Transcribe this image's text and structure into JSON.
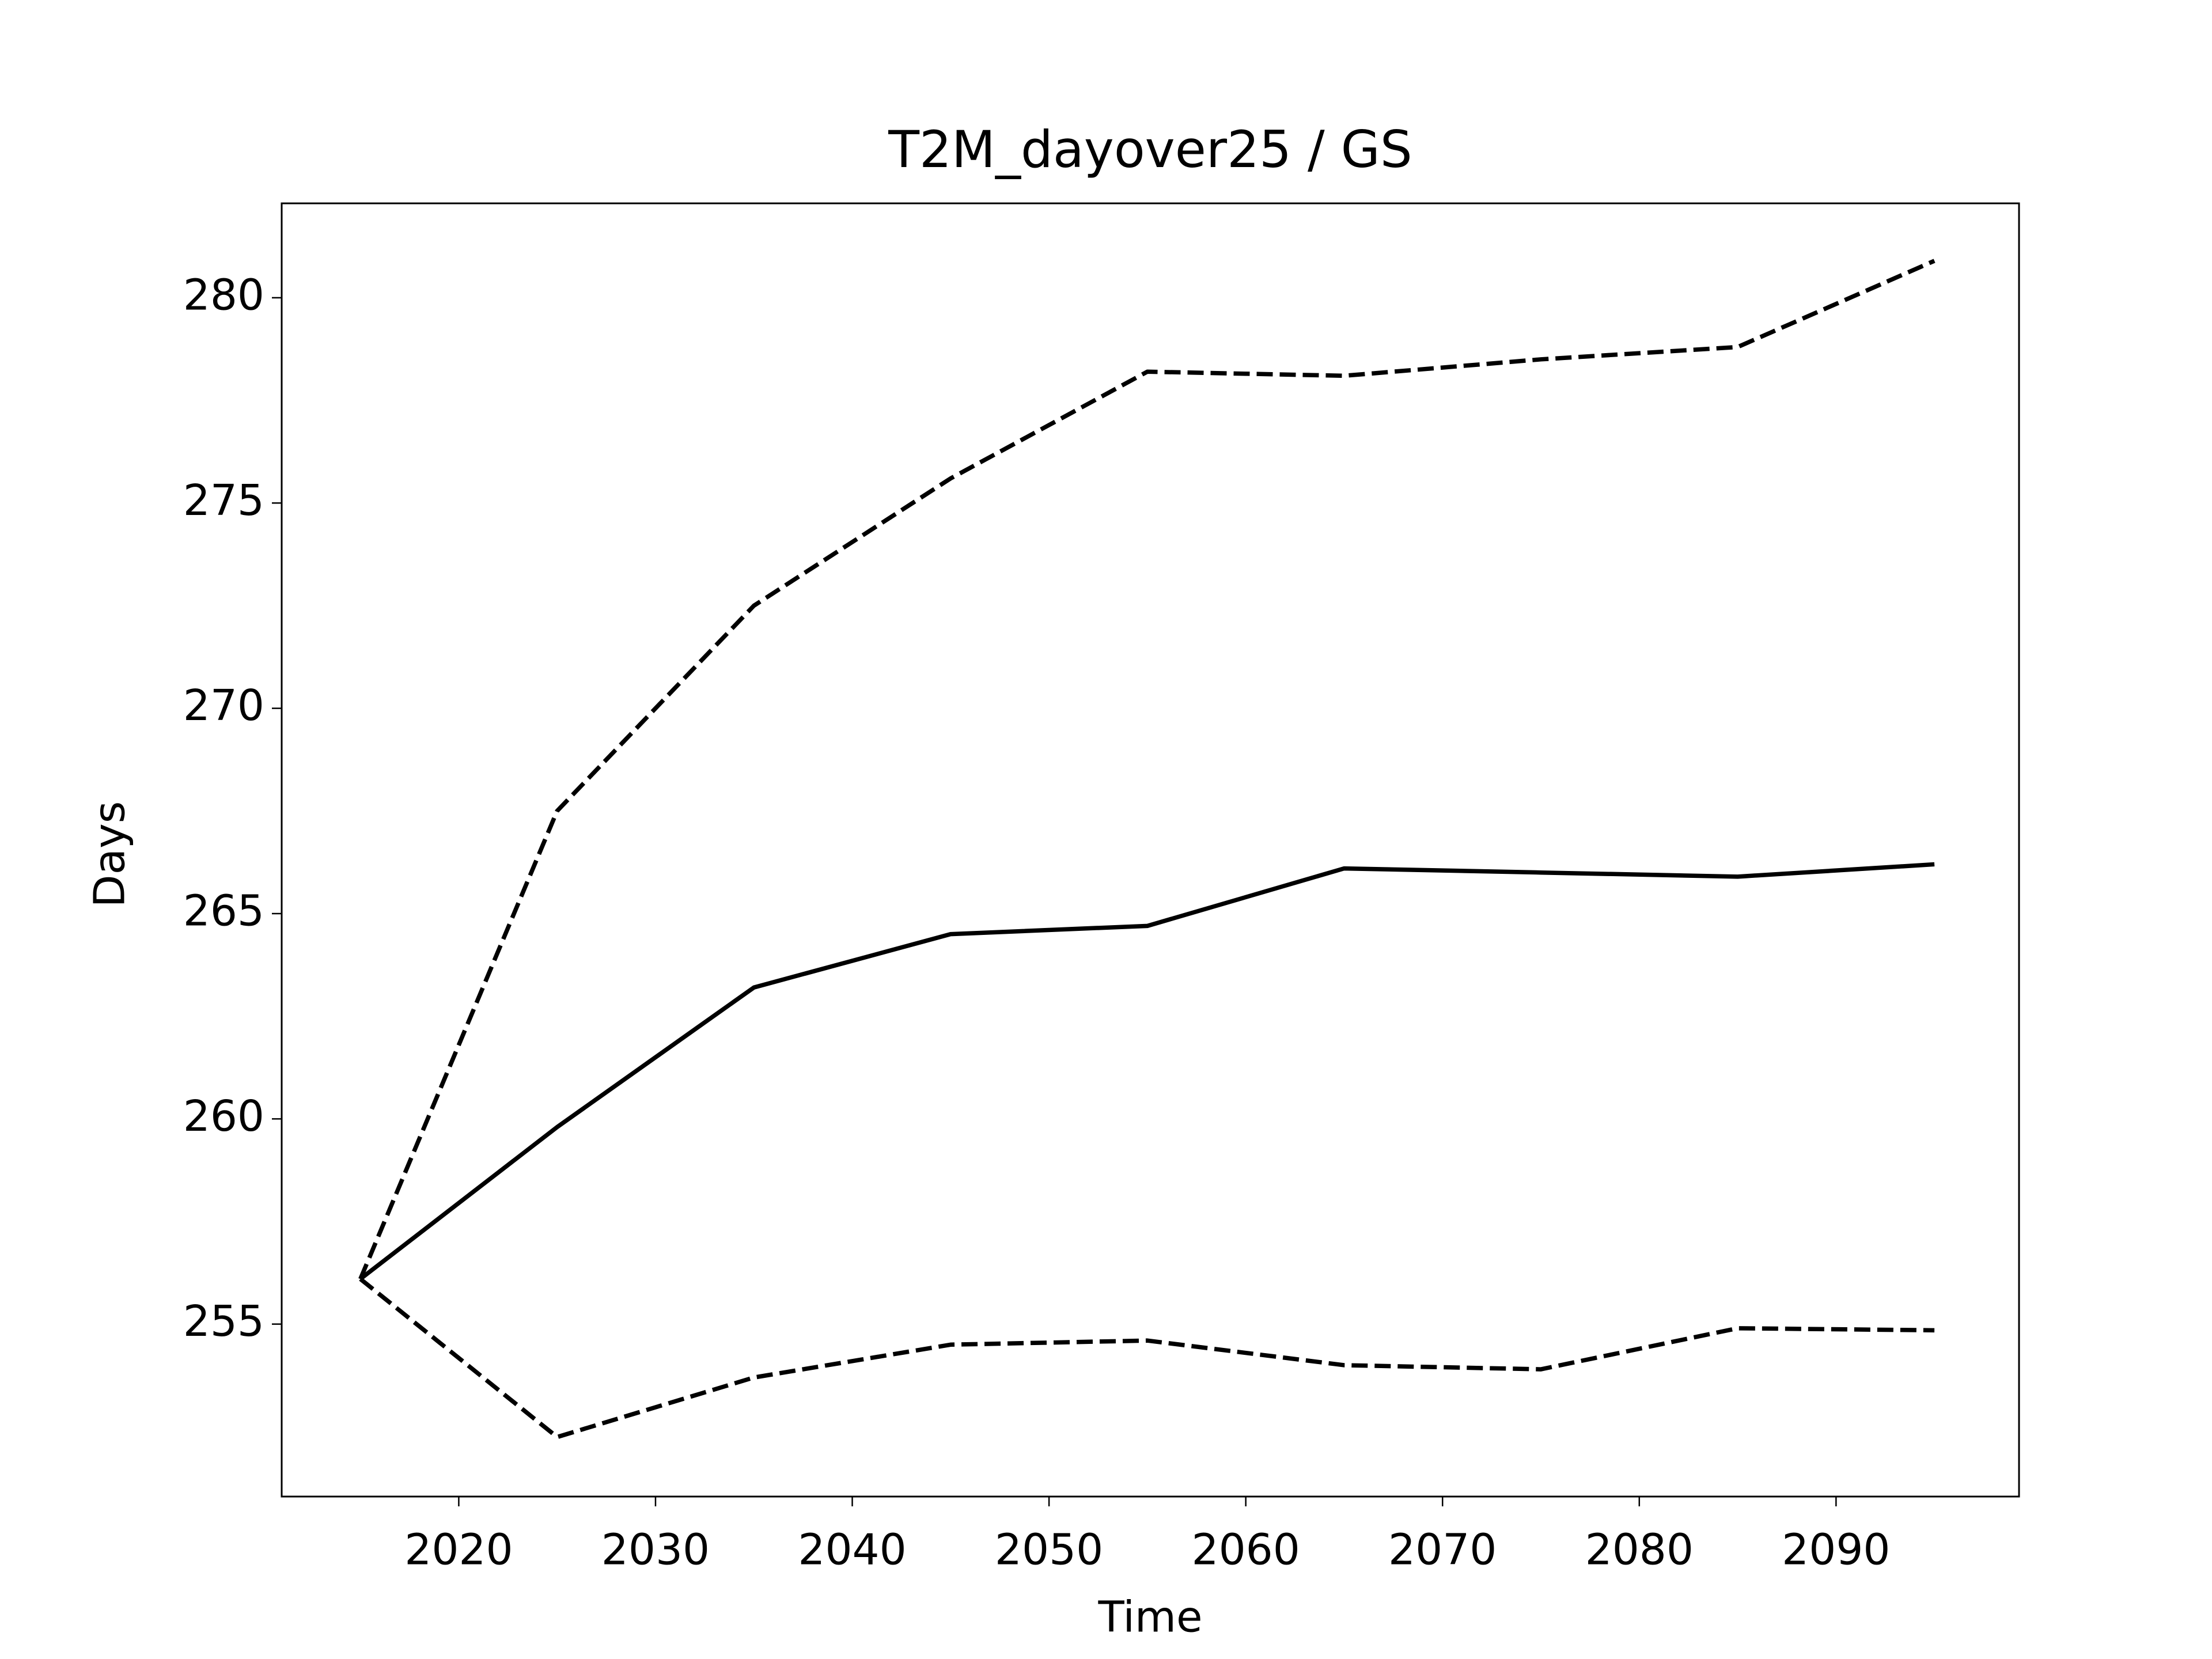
{
  "chart_data": {
    "type": "line",
    "title": "T2M_dayover25 / GS",
    "xlabel": "Time",
    "ylabel": "Days",
    "x": [
      2015,
      2025,
      2035,
      2045,
      2055,
      2065,
      2075,
      2085,
      2095
    ],
    "series": [
      {
        "color": "#000000",
        "dash": false,
        "values": [
          256.1,
          259.8,
          263.2,
          264.5,
          264.7,
          266.1,
          266.0,
          265.9,
          266.2
        ]
      },
      {
        "color": "#000000",
        "dash": true,
        "values": [
          256.1,
          267.5,
          272.5,
          275.6,
          278.2,
          278.1,
          278.5,
          278.8,
          280.9
        ]
      },
      {
        "color": "#000000",
        "dash": true,
        "values": [
          256.1,
          252.25,
          253.7,
          254.5,
          254.6,
          254.0,
          253.9,
          254.9,
          254.85
        ]
      }
    ],
    "xlim": [
      2011,
      2099.3
    ],
    "ylim": [
      250.8,
      282.3
    ],
    "xticks": [
      2020,
      2030,
      2040,
      2050,
      2060,
      2070,
      2080,
      2090
    ],
    "yticks": [
      255,
      260,
      265,
      270,
      275,
      280
    ]
  }
}
